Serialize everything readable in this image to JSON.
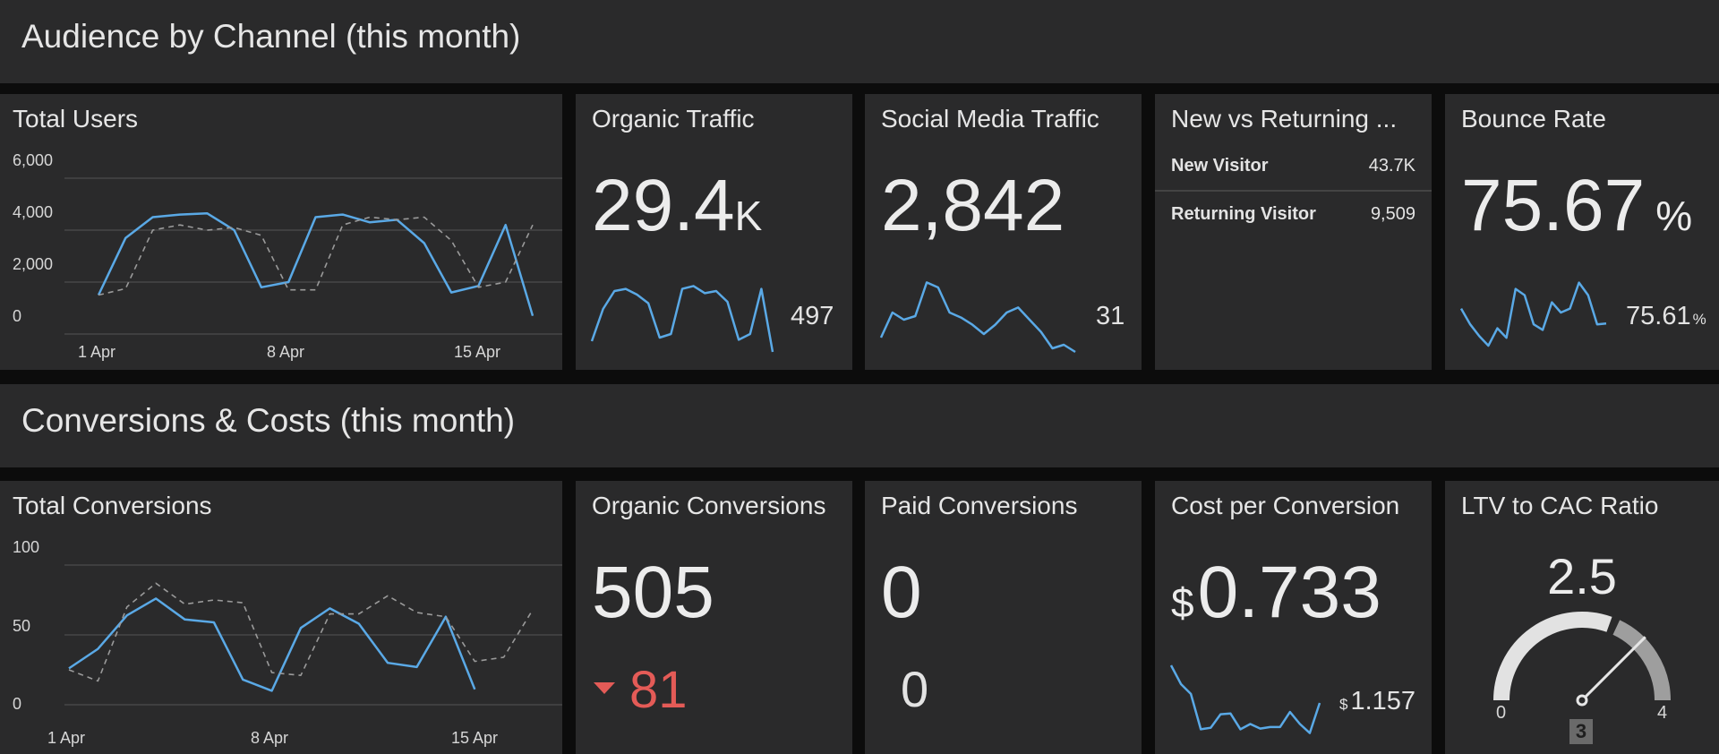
{
  "sections": [
    {
      "title": "Audience by Channel (this month)"
    },
    {
      "title": "Conversions & Costs (this month)"
    }
  ],
  "total_users": {
    "title": "Total Users",
    "y_ticks": [
      "6,000",
      "4,000",
      "2,000",
      "0"
    ],
    "x_ticks": [
      "1 Apr",
      "8 Apr",
      "15 Apr"
    ]
  },
  "organic_traffic": {
    "title": "Organic Traffic",
    "value": "29.4",
    "unit": "K",
    "side_value": "497"
  },
  "social_traffic": {
    "title": "Social Media Traffic",
    "value": "2,842",
    "side_value": "31"
  },
  "new_vs_returning": {
    "title": "New vs Returning ...",
    "rows": [
      {
        "label": "New Visitor",
        "value": "43.7K"
      },
      {
        "label": "Returning Visitor",
        "value": "9,509"
      }
    ]
  },
  "bounce_rate": {
    "title": "Bounce Rate",
    "value": "75.67",
    "unit": "%",
    "side_value": "75.61",
    "side_unit": "%"
  },
  "total_conversions": {
    "title": "Total Conversions",
    "y_ticks": [
      "100",
      "50",
      "0"
    ],
    "x_ticks": [
      "1 Apr",
      "8 Apr",
      "15 Apr"
    ]
  },
  "organic_conversions": {
    "title": "Organic Conversions",
    "value": "505",
    "delta": "81",
    "delta_direction": "down"
  },
  "paid_conversions": {
    "title": "Paid Conversions",
    "value": "0",
    "side_value": "0"
  },
  "cost_per_conversion": {
    "title": "Cost per Conversion",
    "currency": "$",
    "value": "0.733",
    "side_currency": "$",
    "side_value": "1.157"
  },
  "ltv_cac": {
    "title": "LTV to CAC Ratio",
    "value": "2.5",
    "min": "0",
    "max": "4",
    "target": "3"
  },
  "colors": {
    "background": "#0c0c0c",
    "tile": "#2a2a2b",
    "series_current": "#5aa9e6",
    "series_previous": "#9a9a9a",
    "negative": "#e45b57",
    "gauge_fill": "#e2e2e2",
    "gauge_rest": "#9e9e9e"
  },
  "chart_data": [
    {
      "type": "line",
      "title": "Total Users",
      "xlabel": "",
      "ylabel": "",
      "ylim": [
        0,
        6000
      ],
      "x_ticks": [
        "1 Apr",
        "8 Apr",
        "15 Apr"
      ],
      "series": [
        {
          "values": [
            1500,
            3700,
            4500,
            4600,
            4650,
            4000,
            1800,
            2000,
            4500,
            4600,
            4300,
            4400,
            3500,
            1600,
            1850,
            4200,
            700
          ]
        },
        {
          "values": [
            1500,
            1750,
            4000,
            4200,
            4000,
            4100,
            3800,
            1700,
            1700,
            4200,
            4500,
            4400,
            4500,
            3600,
            1800,
            2000,
            4200
          ]
        }
      ],
      "grid": true
    },
    {
      "type": "line",
      "title": "Total Conversions",
      "xlabel": "",
      "ylabel": "",
      "ylim": [
        0,
        100
      ],
      "x_ticks": [
        "1 Apr",
        "8 Apr",
        "15 Apr"
      ],
      "series": [
        {
          "values": [
            26,
            40,
            64,
            76,
            61,
            59,
            18,
            10,
            55,
            69,
            58,
            30,
            27,
            63,
            11
          ]
        },
        {
          "values": [
            25,
            17,
            70,
            87,
            72,
            75,
            73,
            23,
            21,
            65,
            65,
            78,
            66,
            63,
            31,
            34,
            68
          ]
        }
      ],
      "grid": true
    }
  ]
}
